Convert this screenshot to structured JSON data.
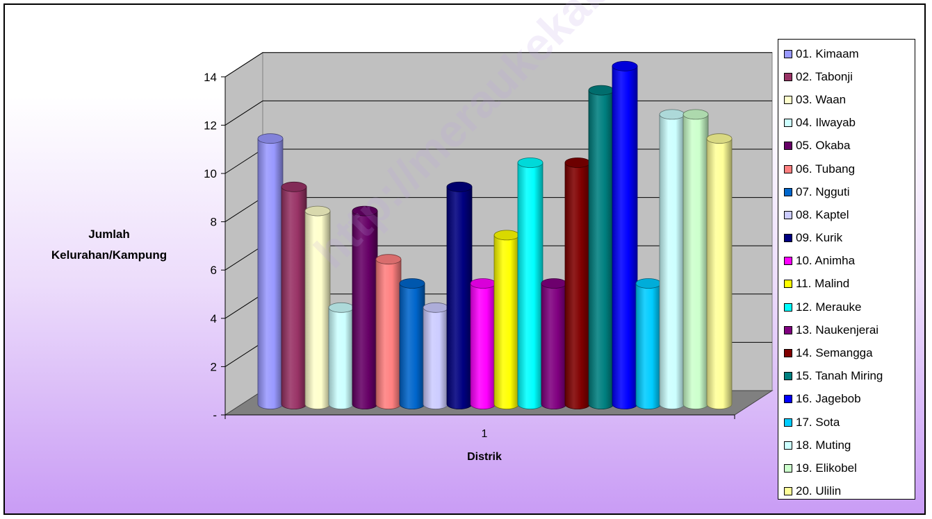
{
  "chart_data": {
    "type": "bar",
    "title": "",
    "ylabel_lines": [
      "Jumlah",
      "Kelurahan/Kampung"
    ],
    "xlabel": "Distrik",
    "categories": [
      "1"
    ],
    "ylim": [
      0,
      14
    ],
    "yticks": [
      "-",
      "2",
      "4",
      "6",
      "8",
      "10",
      "12",
      "14"
    ],
    "grid": true,
    "legend_position": "right",
    "series": [
      {
        "name": "01. Kimaam",
        "values": [
          11
        ],
        "color": "#9999ff"
      },
      {
        "name": "02. Tabonji",
        "values": [
          9
        ],
        "color": "#993366"
      },
      {
        "name": "03. Waan",
        "values": [
          8
        ],
        "color": "#ffffcc"
      },
      {
        "name": "04. Ilwayab",
        "values": [
          4
        ],
        "color": "#ccffff"
      },
      {
        "name": "05. Okaba",
        "values": [
          8
        ],
        "color": "#660066"
      },
      {
        "name": "06. Tubang",
        "values": [
          6
        ],
        "color": "#ff8080"
      },
      {
        "name": "07. Ngguti",
        "values": [
          5
        ],
        "color": "#0066cc"
      },
      {
        "name": "08. Kaptel",
        "values": [
          4
        ],
        "color": "#ccccff"
      },
      {
        "name": "09. Kurik",
        "values": [
          9
        ],
        "color": "#000080"
      },
      {
        "name": "10. Animha",
        "values": [
          5
        ],
        "color": "#ff00ff"
      },
      {
        "name": "11. Malind",
        "values": [
          7
        ],
        "color": "#ffff00"
      },
      {
        "name": "12. Merauke",
        "values": [
          10
        ],
        "color": "#00ffff"
      },
      {
        "name": "13. Naukenjerai",
        "values": [
          5
        ],
        "color": "#800080"
      },
      {
        "name": "14. Semangga",
        "values": [
          10
        ],
        "color": "#800000"
      },
      {
        "name": "15. Tanah Miring",
        "values": [
          13
        ],
        "color": "#008080"
      },
      {
        "name": "16. Jagebob",
        "values": [
          14
        ],
        "color": "#0000ff"
      },
      {
        "name": "17. Sota",
        "values": [
          5
        ],
        "color": "#00ccff"
      },
      {
        "name": "18. Muting",
        "values": [
          12
        ],
        "color": "#ccffff"
      },
      {
        "name": "19. Elikobel",
        "values": [
          12
        ],
        "color": "#ccffcc"
      },
      {
        "name": "20. Ulilin",
        "values": [
          11
        ],
        "color": "#ffff99"
      }
    ]
  },
  "watermark": "http://meraukekab.bps.go.id"
}
